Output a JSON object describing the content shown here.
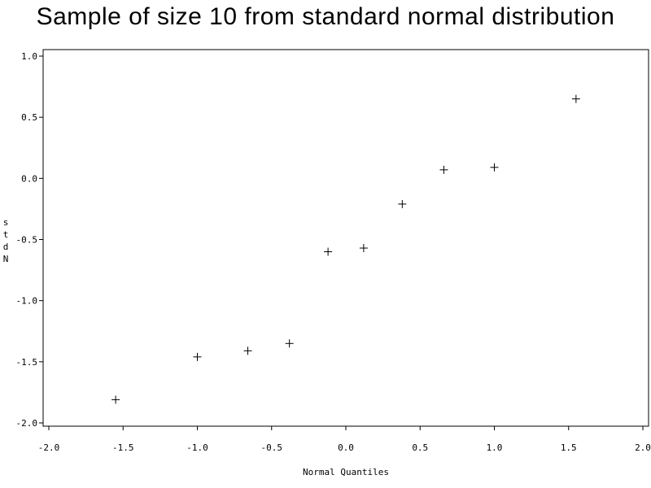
{
  "chart_data": {
    "type": "scatter",
    "title": "Sample of size 10 from standard normal distribution",
    "xlabel": "Normal Quantiles",
    "ylabel": "stdN",
    "marker": "+",
    "xlim": [
      -2.0,
      2.0
    ],
    "ylim": [
      -2.0,
      1.0
    ],
    "x_ticks": [
      "-2.0",
      "-1.5",
      "-1.0",
      "-0.5",
      "0.0",
      "0.5",
      "1.0",
      "1.5",
      "2.0"
    ],
    "y_ticks": [
      "-2.0",
      "-1.5",
      "-1.0",
      "-0.5",
      "0.0",
      "0.5",
      "1.0"
    ],
    "points": [
      {
        "x": -1.55,
        "y": -1.81
      },
      {
        "x": -1.0,
        "y": -1.46
      },
      {
        "x": -0.66,
        "y": -1.41
      },
      {
        "x": -0.38,
        "y": -1.35
      },
      {
        "x": -0.12,
        "y": -0.6
      },
      {
        "x": 0.12,
        "y": -0.57
      },
      {
        "x": 0.38,
        "y": -0.21
      },
      {
        "x": 0.66,
        "y": 0.07
      },
      {
        "x": 1.0,
        "y": 0.09
      },
      {
        "x": 1.55,
        "y": 0.65
      }
    ],
    "colors": {
      "marker": "#000000",
      "axis": "#000000",
      "background": "#ffffff"
    }
  }
}
